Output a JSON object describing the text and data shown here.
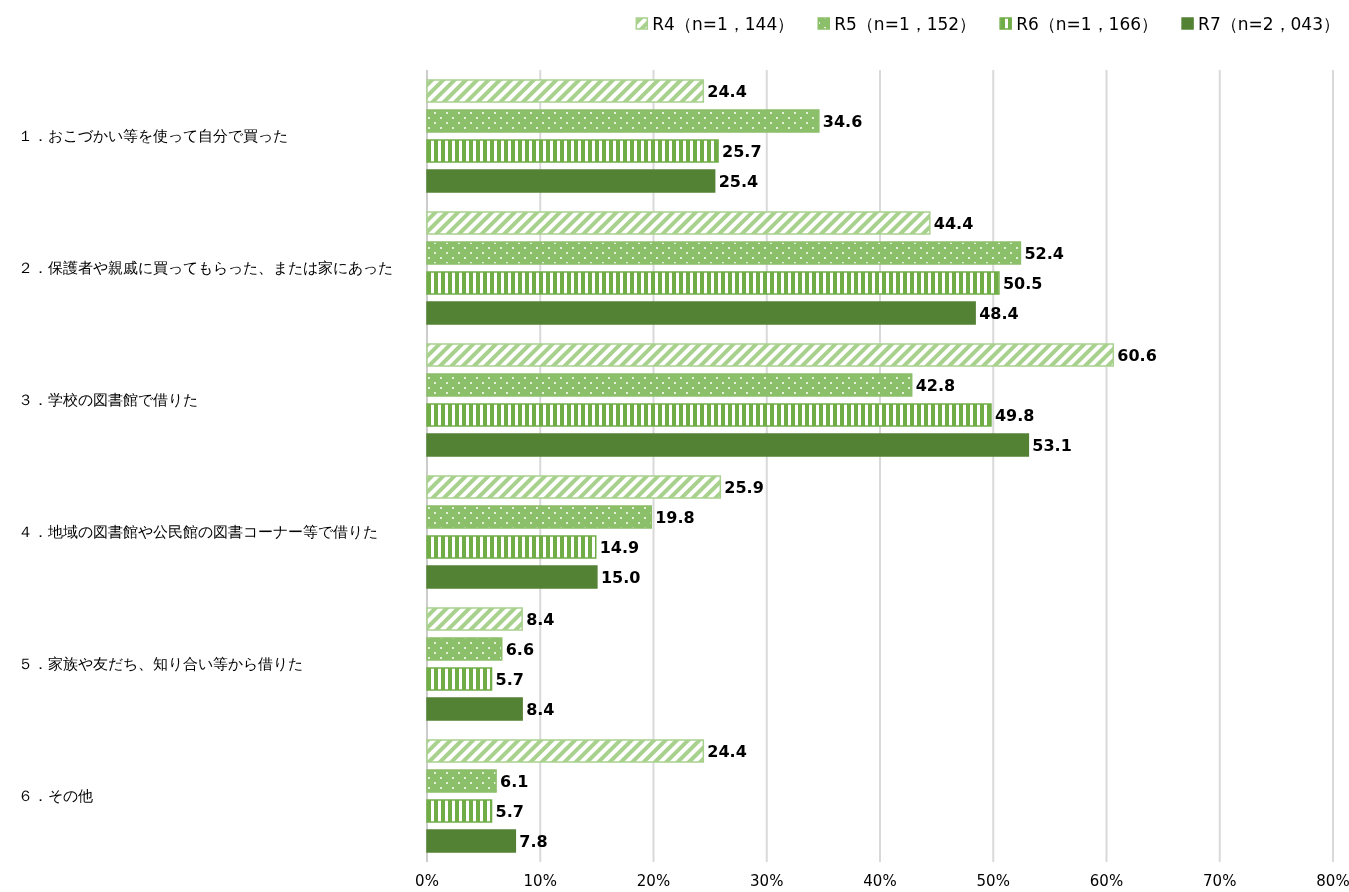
{
  "chart_data": {
    "type": "bar",
    "orientation": "horizontal",
    "categories": [
      "１．おこづかい等を使って自分で買った",
      "２．保護者や親戚に買ってもらった、または家にあった",
      "３．学校の図書館で借りた",
      "４．地域の図書館や公民館の図書コーナー等で借りた",
      "５．家族や友だち、知り合い等から借りた",
      "６．その他"
    ],
    "series": [
      {
        "name": "R4（n=1，144）",
        "color": "#a9d18e",
        "values": [
          24.4,
          44.4,
          60.6,
          25.9,
          8.4,
          24.4
        ]
      },
      {
        "name": "R5（n=1，152）",
        "color": "#8cbf6a",
        "values": [
          34.6,
          52.4,
          42.8,
          19.8,
          6.6,
          6.1
        ]
      },
      {
        "name": "R6（n=1，166）",
        "color": "#70ad47",
        "values": [
          25.7,
          50.5,
          49.8,
          14.9,
          5.7,
          5.7
        ]
      },
      {
        "name": "R7（n=2，043）",
        "color": "#548235",
        "values": [
          25.4,
          48.4,
          53.1,
          15.0,
          8.4,
          7.8
        ],
        "value_labels": [
          "25.4",
          "48.4",
          "53.1",
          "15.0",
          "8.4",
          "7.8"
        ]
      }
    ],
    "xlim": [
      0,
      80
    ],
    "xticks": [
      {
        "value": 0,
        "label": "0%"
      },
      {
        "value": 10,
        "label": "10%"
      },
      {
        "value": 20,
        "label": "20%"
      },
      {
        "value": 30,
        "label": "30%"
      },
      {
        "value": 40,
        "label": "40%"
      },
      {
        "value": 50,
        "label": "50%"
      },
      {
        "value": 60,
        "label": "60%"
      },
      {
        "value": 70,
        "label": "70%"
      },
      {
        "value": 80,
        "label": "80%"
      }
    ],
    "grid": "x",
    "legend": "top right",
    "data_labels": true
  }
}
